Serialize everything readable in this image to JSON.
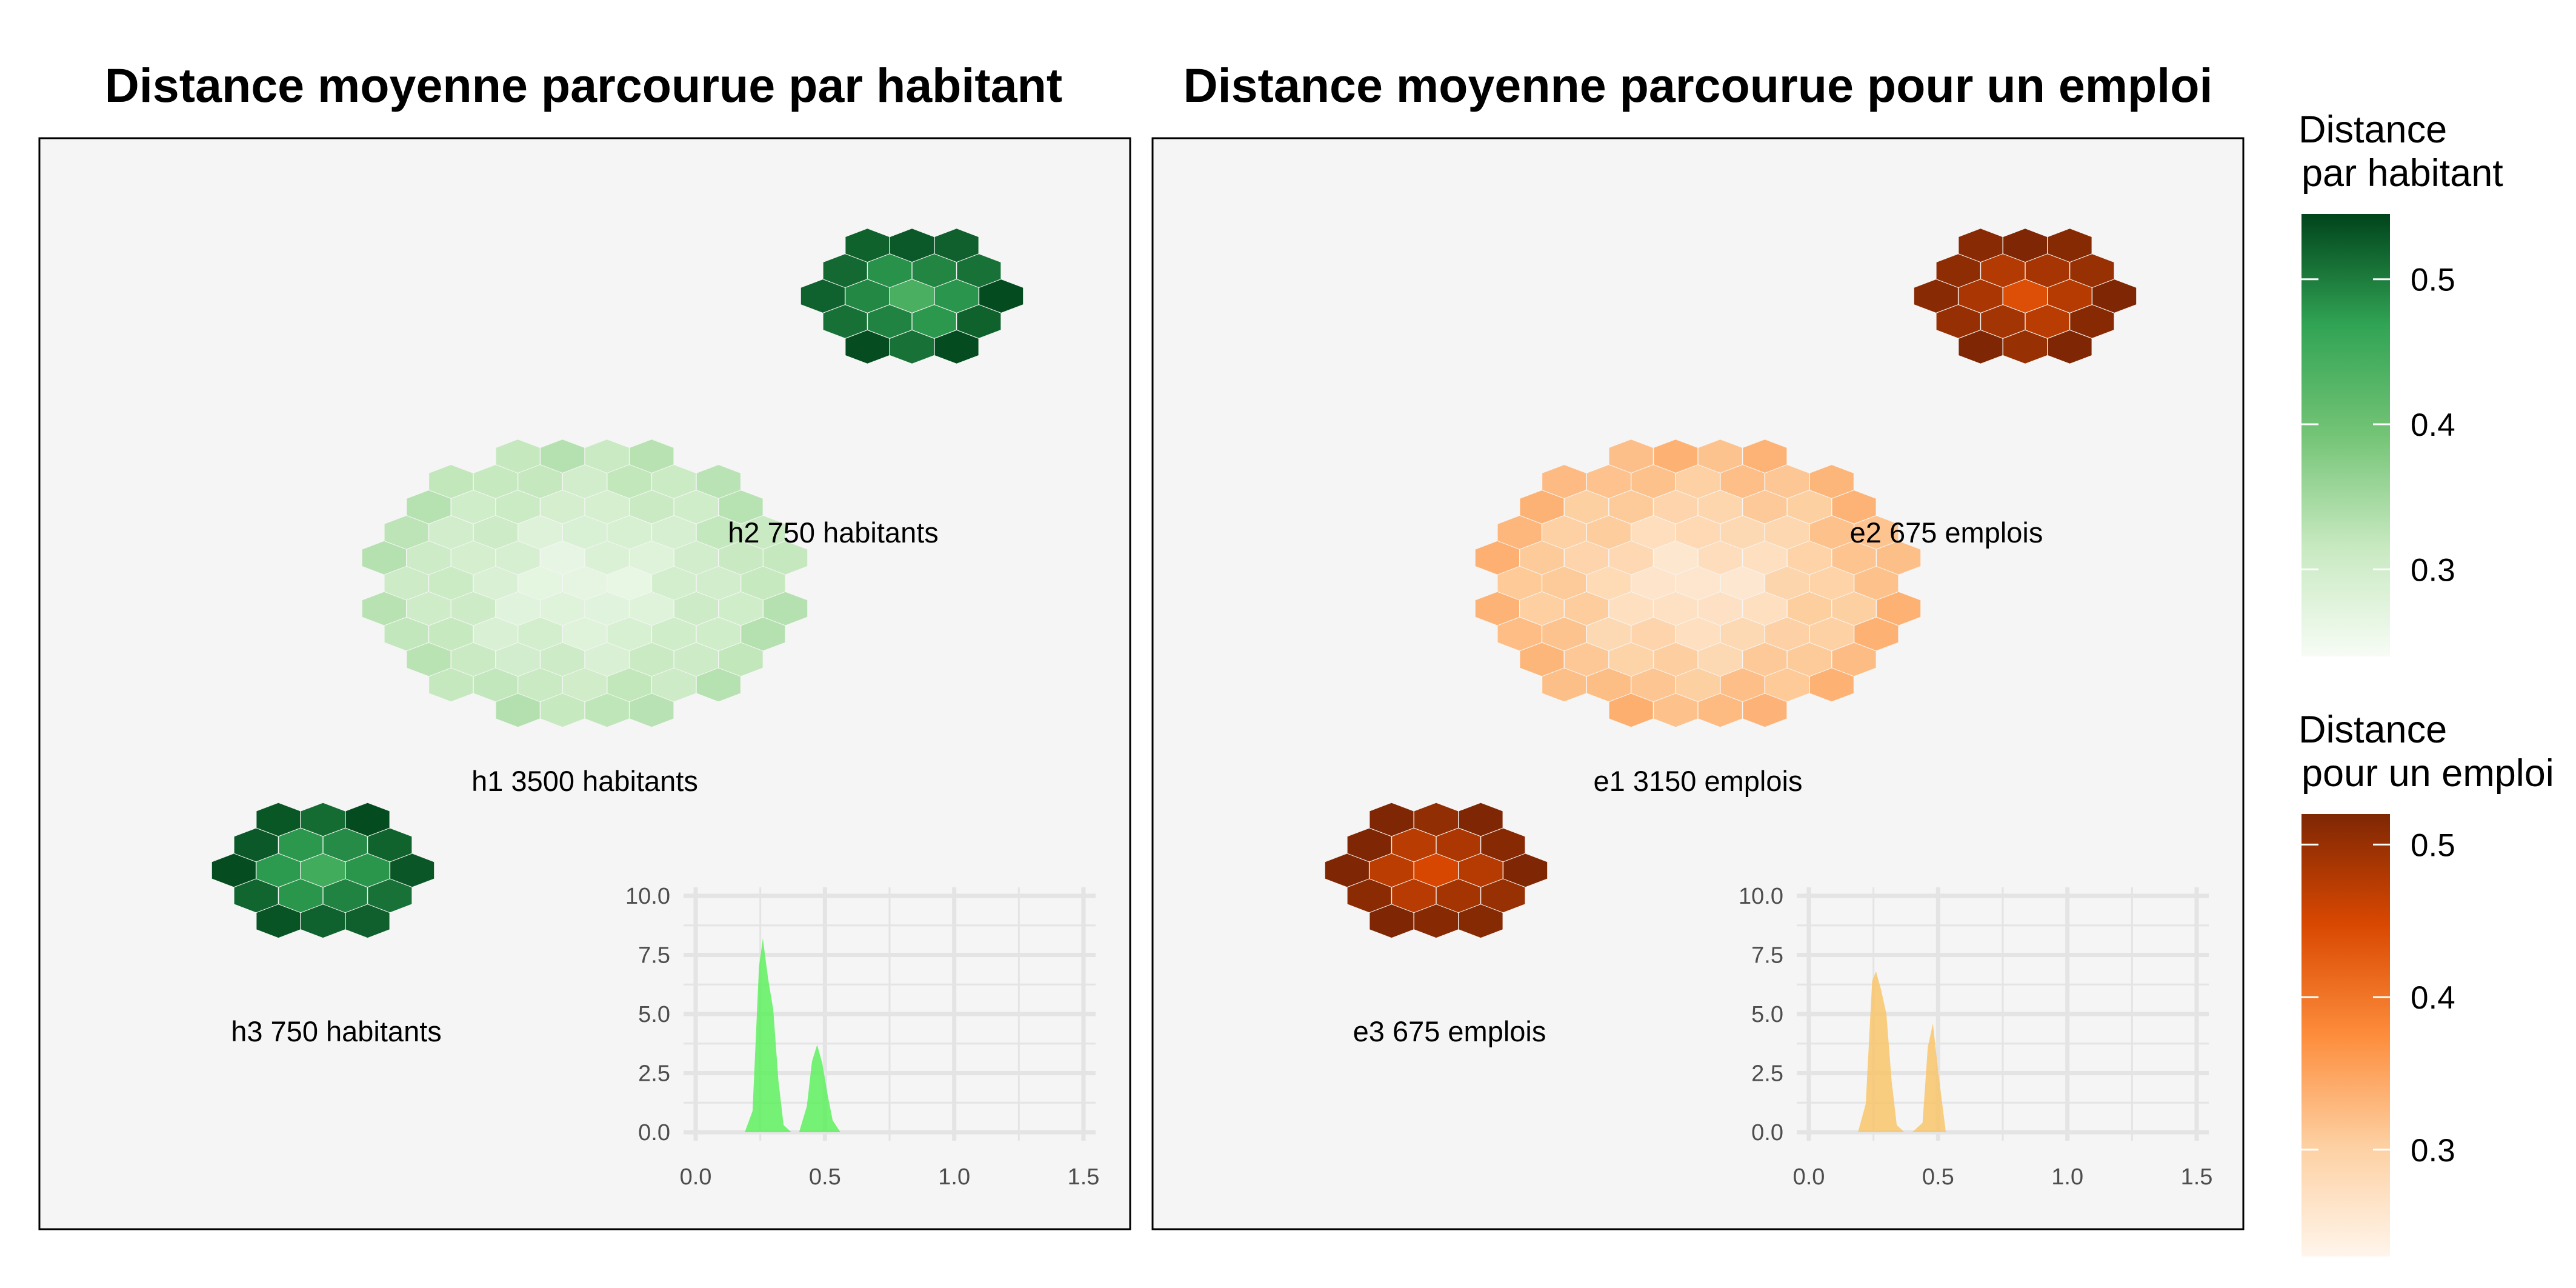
{
  "panels": [
    {
      "title": "Distance moyenne parcourue par habitant",
      "scale": "green",
      "clusters": [
        {
          "label": "h2 750 habitants",
          "cx": 4.0,
          "cy": 7.0,
          "radius": 0.5,
          "values": [
            0.43,
            0.54
          ]
        },
        {
          "label": "h1 3500 habitants",
          "cx": 2.5,
          "cy": 5.0,
          "radius": 1.0,
          "values": [
            0.25,
            0.32
          ]
        },
        {
          "label": "h3 750 habitants",
          "cx": 1.3,
          "cy": 3.0,
          "radius": 0.5,
          "values": [
            0.43,
            0.54
          ]
        }
      ],
      "inset": {
        "type": "area",
        "xlim": [
          0,
          1.5
        ],
        "ylim": [
          0,
          10
        ],
        "x_ticks": [
          "0.0",
          "0.5",
          "1.0",
          "1.5"
        ],
        "y_ticks": [
          "0.0",
          "2.5",
          "5.0",
          "7.5",
          "10.0"
        ],
        "fill": "#5ef05e",
        "x": [
          0.19,
          0.22,
          0.245,
          0.26,
          0.28,
          0.3,
          0.32,
          0.34,
          0.37,
          0.4,
          0.43,
          0.45,
          0.47,
          0.49,
          0.51,
          0.53,
          0.56
        ],
        "y": [
          0.0,
          0.9,
          7.0,
          8.2,
          6.5,
          5.2,
          2.2,
          0.3,
          0.0,
          0.0,
          1.1,
          3.0,
          3.7,
          2.9,
          1.6,
          0.5,
          0.0
        ]
      }
    },
    {
      "title": "Distance moyenne parcourue pour un emploi",
      "scale": "orange",
      "clusters": [
        {
          "label": "e2 675 emplois",
          "cx": 4.0,
          "cy": 7.0,
          "radius": 0.45,
          "values": [
            0.43,
            0.52
          ]
        },
        {
          "label": "e1 3150 emplois",
          "cx": 2.5,
          "cy": 5.0,
          "radius": 0.95,
          "values": [
            0.24,
            0.32
          ]
        },
        {
          "label": "e3 675 emplois",
          "cx": 1.3,
          "cy": 3.0,
          "radius": 0.45,
          "values": [
            0.43,
            0.52
          ]
        }
      ],
      "inset": {
        "type": "area",
        "xlim": [
          0,
          1.5
        ],
        "ylim": [
          0,
          10
        ],
        "x_ticks": [
          "0.0",
          "0.5",
          "1.0",
          "1.5"
        ],
        "y_ticks": [
          "0.0",
          "2.5",
          "5.0",
          "7.5",
          "10.0"
        ],
        "fill": "#f8c56b",
        "x": [
          0.19,
          0.22,
          0.245,
          0.26,
          0.28,
          0.3,
          0.32,
          0.34,
          0.37,
          0.4,
          0.44,
          0.46,
          0.48,
          0.5,
          0.53
        ],
        "y": [
          0.0,
          1.2,
          6.4,
          6.8,
          6.0,
          5.0,
          2.2,
          0.3,
          0.0,
          0.0,
          0.4,
          3.6,
          4.6,
          2.6,
          0.0
        ]
      }
    }
  ],
  "legends": [
    {
      "title_line1": "Distance",
      "title_line2": "par habitant",
      "colors": [
        "#f7fcf5",
        "#c7e9c0",
        "#74c476",
        "#31a354",
        "#00441b"
      ],
      "range": [
        0.24,
        0.545
      ],
      "ticks": [
        {
          "v": 0.3,
          "label": "0.3"
        },
        {
          "v": 0.4,
          "label": "0.4"
        },
        {
          "v": 0.5,
          "label": "0.5"
        }
      ]
    },
    {
      "title_line1": "Distance",
      "title_line2": "pour un emploi",
      "colors": [
        "#fff5eb",
        "#fdd0a2",
        "#fd8d3c",
        "#d94801",
        "#7f2704"
      ],
      "range": [
        0.23,
        0.52
      ],
      "ticks": [
        {
          "v": 0.3,
          "label": "0.3"
        },
        {
          "v": 0.4,
          "label": "0.4"
        },
        {
          "v": 0.5,
          "label": "0.5"
        }
      ]
    }
  ],
  "colors": {
    "panel_background": "#f5f5f5",
    "panel_border": "#000000",
    "grid": "#e4e4e4",
    "green_scale": [
      "#f7fcf5",
      "#c7e9c0",
      "#74c476",
      "#31a354",
      "#00441b"
    ],
    "orange_scale": [
      "#fff5eb",
      "#fdd0a2",
      "#fd8d3c",
      "#d94801",
      "#7f2704"
    ]
  },
  "chart_data": [
    {
      "type": "heatmap",
      "title": "Distance moyenne parcourue par habitant",
      "series": [
        {
          "name": "h1 3500 habitants",
          "values": [
            0.25,
            0.32
          ]
        },
        {
          "name": "h2 750 habitants",
          "values": [
            0.43,
            0.54
          ]
        },
        {
          "name": "h3 750 habitants",
          "values": [
            0.43,
            0.54
          ]
        }
      ],
      "legend_title": "Distance par habitant",
      "legend_range": [
        0.24,
        0.545
      ],
      "legend_ticks": [
        0.3,
        0.4,
        0.5
      ]
    },
    {
      "type": "heatmap",
      "title": "Distance moyenne parcourue pour un emploi",
      "series": [
        {
          "name": "e1 3150 emplois",
          "values": [
            0.24,
            0.32
          ]
        },
        {
          "name": "e2 675 emplois",
          "values": [
            0.43,
            0.52
          ]
        },
        {
          "name": "e3 675 emplois",
          "values": [
            0.43,
            0.52
          ]
        }
      ],
      "legend_title": "Distance pour un emploi",
      "legend_range": [
        0.23,
        0.52
      ],
      "legend_ticks": [
        0.3,
        0.4,
        0.5
      ]
    },
    {
      "type": "area",
      "x": [
        0.19,
        0.22,
        0.245,
        0.26,
        0.28,
        0.3,
        0.32,
        0.34,
        0.37,
        0.4,
        0.43,
        0.45,
        0.47,
        0.49,
        0.51,
        0.53,
        0.56
      ],
      "y": [
        0.0,
        0.9,
        7.0,
        8.2,
        6.5,
        5.2,
        2.2,
        0.3,
        0.0,
        0.0,
        1.1,
        3.0,
        3.7,
        2.9,
        1.6,
        0.5,
        0.0
      ],
      "xlim": [
        0,
        1.5
      ],
      "ylim": [
        0,
        10
      ],
      "xlabel": "",
      "ylabel": ""
    },
    {
      "type": "area",
      "x": [
        0.19,
        0.22,
        0.245,
        0.26,
        0.28,
        0.3,
        0.32,
        0.34,
        0.37,
        0.4,
        0.44,
        0.46,
        0.48,
        0.5,
        0.53
      ],
      "y": [
        0.0,
        1.2,
        6.4,
        6.8,
        6.0,
        5.0,
        2.2,
        0.3,
        0.0,
        0.0,
        0.4,
        3.6,
        4.6,
        2.6,
        0.0
      ],
      "xlim": [
        0,
        1.5
      ],
      "ylim": [
        0,
        10
      ],
      "xlabel": "",
      "ylabel": ""
    }
  ]
}
